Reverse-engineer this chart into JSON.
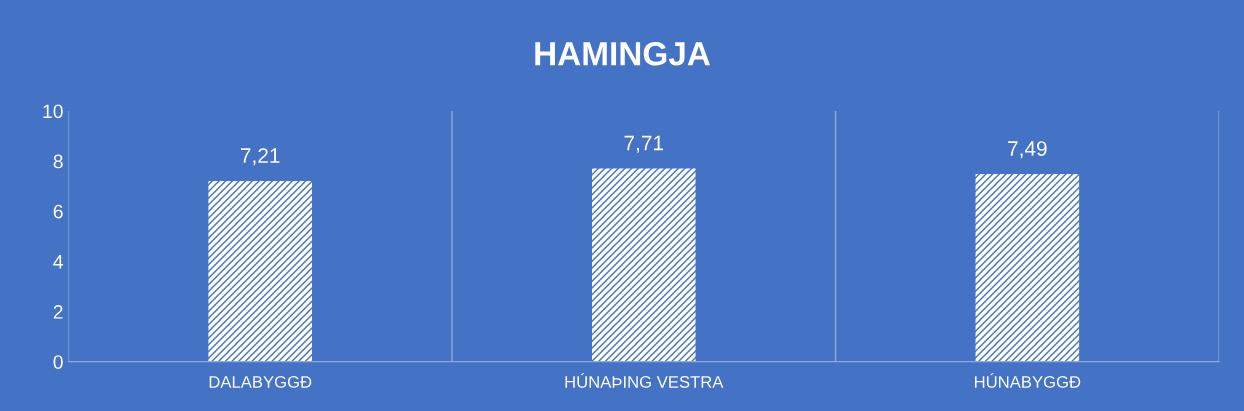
{
  "chart_data": {
    "type": "bar",
    "title": "HAMINGJA",
    "categories": [
      "DALABYGGÐ",
      "HÚNAÞING VESTRA",
      "HÚNABYGGÐ"
    ],
    "values": [
      7.21,
      7.71,
      7.49
    ],
    "value_labels": [
      "7,21",
      "7,71",
      "7,49"
    ],
    "color": "#ffffff",
    "ylim": [
      0,
      10
    ],
    "yticks": [
      0,
      2,
      4,
      6,
      8,
      10
    ],
    "grid": "x"
  }
}
